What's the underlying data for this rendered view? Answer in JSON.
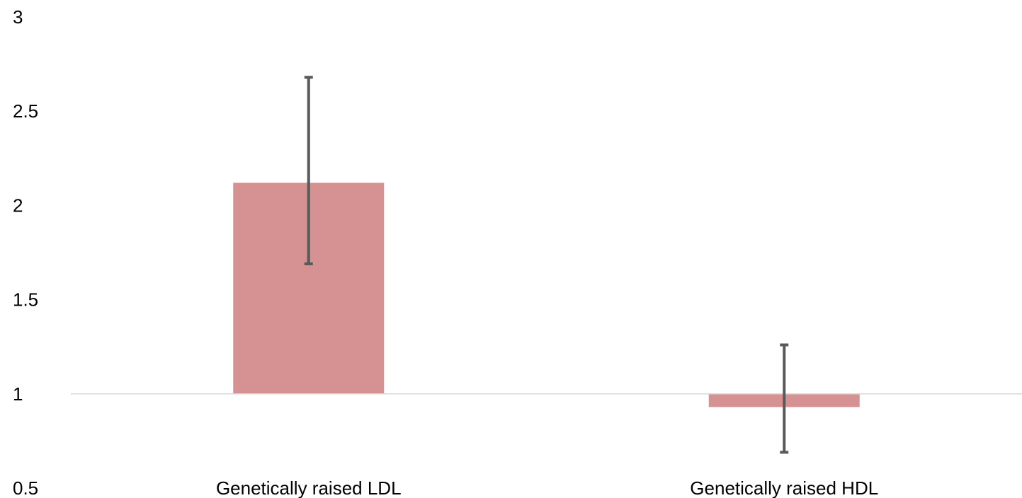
{
  "chart_data": {
    "type": "bar",
    "categories": [
      "Genetically raised LDL",
      "Genetically raised HDL"
    ],
    "values": [
      2.12,
      0.93
    ],
    "error_low": [
      1.69,
      0.69
    ],
    "error_high": [
      2.68,
      1.26
    ],
    "baseline": 1,
    "ylim": [
      0.5,
      3
    ],
    "yticks": [
      "0.5",
      "1",
      "1.5",
      "2",
      "2.5",
      "3"
    ],
    "title": "",
    "xlabel": "",
    "ylabel": "",
    "grid": false,
    "bar_color": "#d69192",
    "error_color": "#595959",
    "axis_line_color": "#d9d9d9"
  }
}
